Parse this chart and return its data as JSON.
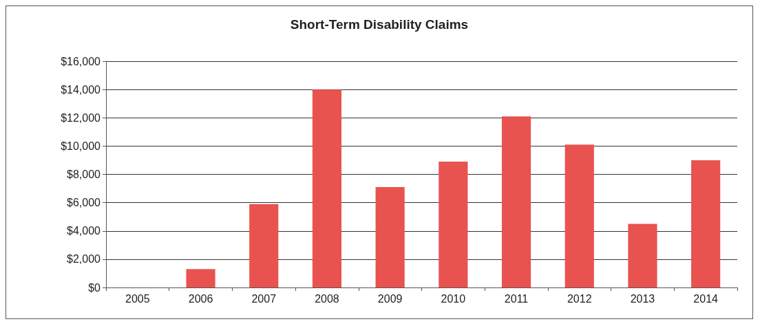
{
  "chart_data": {
    "type": "bar",
    "title": "Short-Term Disability Claims",
    "categories": [
      "2005",
      "2006",
      "2007",
      "2008",
      "2009",
      "2010",
      "2011",
      "2012",
      "2013",
      "2014"
    ],
    "values": [
      0,
      1300,
      5900,
      14000,
      7100,
      8900,
      12100,
      10100,
      4500,
      9000
    ],
    "color": "#e8534f",
    "ylim": [
      0,
      16000
    ],
    "yticks": [
      {
        "value": 0,
        "label": "$0"
      },
      {
        "value": 2000,
        "label": "$2,000"
      },
      {
        "value": 4000,
        "label": "$4,000"
      },
      {
        "value": 6000,
        "label": "$6,000"
      },
      {
        "value": 8000,
        "label": "$8,000"
      },
      {
        "value": 10000,
        "label": "$10,000"
      },
      {
        "value": 12000,
        "label": "$12,000"
      },
      {
        "value": 14000,
        "label": "$14,000"
      },
      {
        "value": 16000,
        "label": "$16,000"
      }
    ],
    "grid": "y"
  }
}
